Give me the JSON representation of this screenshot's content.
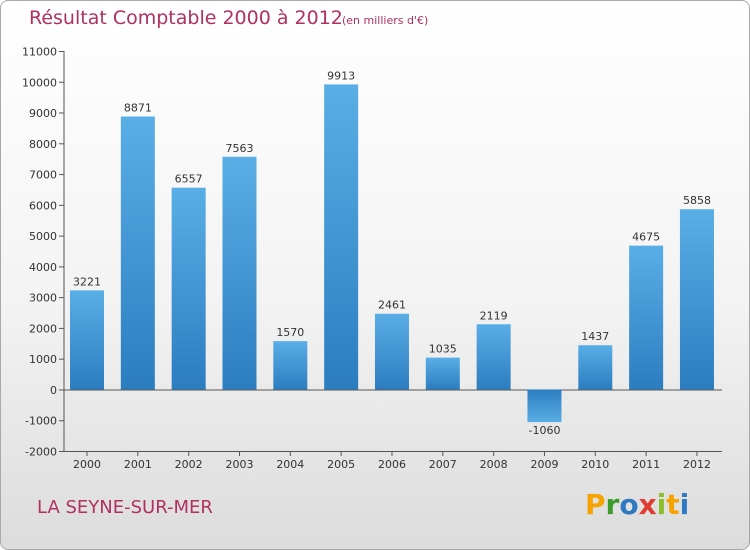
{
  "chart_data": {
    "type": "bar",
    "title": "Résultat Comptable 2000 à 2012",
    "subtitle": "(en milliers d'€)",
    "categories": [
      "2000",
      "2001",
      "2002",
      "2003",
      "2004",
      "2005",
      "2006",
      "2007",
      "2008",
      "2009",
      "2010",
      "2011",
      "2012"
    ],
    "values": [
      3221,
      8871,
      6557,
      7563,
      1570,
      9913,
      2461,
      1035,
      2119,
      -1060,
      1437,
      4675,
      5858
    ],
    "value_labels": [
      "3221",
      "8871",
      "6557",
      "7563",
      "1570",
      "9913",
      "2461",
      "1035",
      "2119",
      "-1060",
      "1437",
      "4675",
      "5858"
    ],
    "yticks": [
      "-2000",
      "-1000",
      "0",
      "1000",
      "2000",
      "3000",
      "4000",
      "5000",
      "6000",
      "7000",
      "8000",
      "9000",
      "10000",
      "11000"
    ],
    "ylim": [
      -2000,
      11000
    ],
    "xlabel": "",
    "ylabel": "",
    "grid": false,
    "bar_color": "#4a9fd8"
  },
  "footer": {
    "city": "LA SEYNE-SUR-MER",
    "logo_letters": [
      "P",
      "r",
      "o",
      "x",
      "i",
      "t",
      "i"
    ],
    "logo_colors": [
      "#f4a300",
      "#3d9a2c",
      "#2f78c2",
      "#e03c31",
      "#8bbf2b",
      "#f4a300",
      "#2f78c2"
    ]
  }
}
